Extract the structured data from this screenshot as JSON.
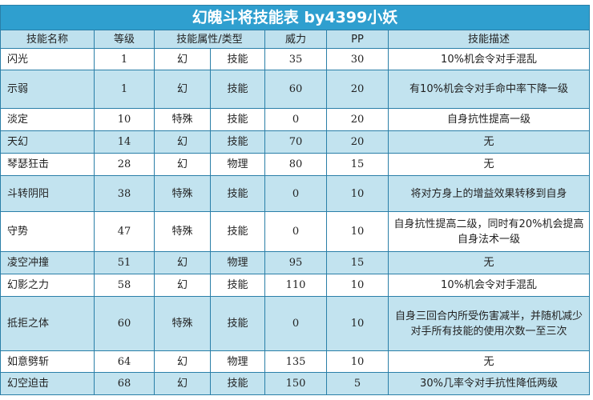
{
  "table": {
    "title": "幻魄斗将技能表 by4399小妖",
    "headers": {
      "name": "技能名称",
      "level": "等级",
      "attr": "技能属性/类型",
      "power": "威力",
      "pp": "PP",
      "desc": "技能描述"
    },
    "rows": [
      {
        "name": "闪光",
        "level": "1",
        "attr": "幻",
        "type": "技能",
        "power": "35",
        "pp": "30",
        "desc": "10%机会令对手混乱"
      },
      {
        "name": "示弱",
        "level": "1",
        "attr": "幻",
        "type": "技能",
        "power": "60",
        "pp": "20",
        "desc": "有10%机会令对手命中率下降一级"
      },
      {
        "name": "淡定",
        "level": "10",
        "attr": "特殊",
        "type": "技能",
        "power": "0",
        "pp": "20",
        "desc": "自身抗性提高一级"
      },
      {
        "name": "天幻",
        "level": "14",
        "attr": "幻",
        "type": "技能",
        "power": "70",
        "pp": "20",
        "desc": "无"
      },
      {
        "name": "琴瑟狂击",
        "level": "28",
        "attr": "幻",
        "type": "物理",
        "power": "80",
        "pp": "15",
        "desc": "无"
      },
      {
        "name": "斗转阴阳",
        "level": "38",
        "attr": "特殊",
        "type": "技能",
        "power": "0",
        "pp": "10",
        "desc": "将对方身上的增益效果转移到自身"
      },
      {
        "name": "守势",
        "level": "47",
        "attr": "特殊",
        "type": "技能",
        "power": "0",
        "pp": "10",
        "desc": "自身抗性提高二级，同时有20%机会提高自身法术一级"
      },
      {
        "name": "凌空冲撞",
        "level": "51",
        "attr": "幻",
        "type": "物理",
        "power": "95",
        "pp": "15",
        "desc": "无"
      },
      {
        "name": "幻影之力",
        "level": "58",
        "attr": "幻",
        "type": "技能",
        "power": "110",
        "pp": "10",
        "desc": "10%机会令对手混乱"
      },
      {
        "name": "抵拒之体",
        "level": "60",
        "attr": "特殊",
        "type": "技能",
        "power": "0",
        "pp": "10",
        "desc": "自身三回合内所受伤害减半，并随机减少对手所有技能的使用次数一至三次"
      },
      {
        "name": "如意劈斩",
        "level": "64",
        "attr": "幻",
        "type": "物理",
        "power": "135",
        "pp": "10",
        "desc": "无"
      },
      {
        "name": "幻空迫击",
        "level": "68",
        "attr": "幻",
        "type": "技能",
        "power": "150",
        "pp": "5",
        "desc": "30%几率令对手抗性降低两级"
      }
    ]
  }
}
